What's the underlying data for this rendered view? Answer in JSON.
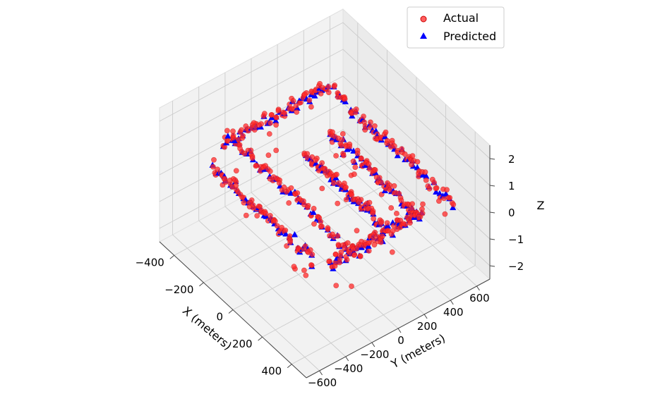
{
  "chart_data": {
    "type": "scatter",
    "projection": "3d",
    "title": "",
    "xlabel": "X (meters)",
    "ylabel": "Y (meters)",
    "zlabel": "Z",
    "xlim": [
      -500,
      500
    ],
    "ylim": [
      -700,
      700
    ],
    "zlim": [
      -2.5,
      2.5
    ],
    "x_ticks": [
      "−400",
      "−200",
      "0",
      "200",
      "400"
    ],
    "y_ticks": [
      "−600",
      "−400",
      "−200",
      "0",
      "200",
      "400",
      "600"
    ],
    "z_ticks": [
      "−2",
      "−1",
      "0",
      "1",
      "2"
    ],
    "grid": true,
    "legend_position": "top-right",
    "series": [
      {
        "name": "Actual",
        "marker": "circle",
        "color": "#ff2a2a"
      },
      {
        "name": "Predicted",
        "marker": "triangle",
        "color": "#0000ff"
      }
    ],
    "tracks": [
      {
        "y": 550,
        "x_start": -430,
        "x_end": 380,
        "z": 0.2
      },
      {
        "y": 300,
        "x_start": -230,
        "x_end": 390,
        "z": 0.3
      },
      {
        "y": 60,
        "x_start": -180,
        "x_end": 360,
        "z": 0.4
      },
      {
        "y": -220,
        "x_start": -430,
        "x_end": 420,
        "z": 0.4
      },
      {
        "y": -480,
        "x_start": -330,
        "x_end": 350,
        "z": 0.6
      },
      {
        "x": -440,
        "y_start": -280,
        "y_end": 520,
        "z": 0.4
      },
      {
        "x": 400,
        "y_start": -400,
        "y_end": 260,
        "z": 0.5
      }
    ]
  }
}
